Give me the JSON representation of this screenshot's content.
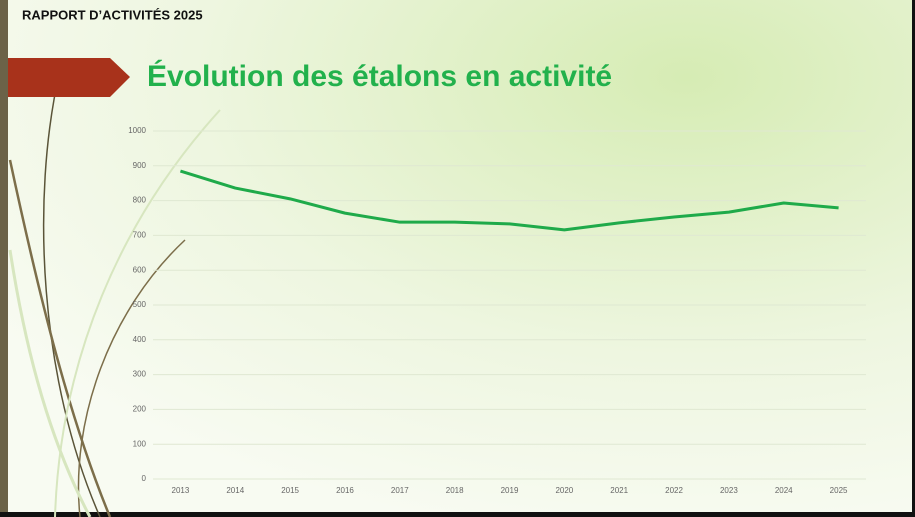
{
  "header": {
    "title": "RAPPORT D’ACTIVITÉS 2025"
  },
  "chart_data": {
    "type": "line",
    "title": "Évolution des étalons en activité",
    "categories": [
      "2013",
      "2014",
      "2015",
      "2016",
      "2017",
      "2018",
      "2019",
      "2020",
      "2021",
      "2022",
      "2023",
      "2024",
      "2025"
    ],
    "series": [
      {
        "name": "Étalons en activité",
        "color": "#1faa4a",
        "values": [
          885,
          836,
          805,
          764,
          738,
          738,
          733,
          716,
          736,
          753,
          767,
          793,
          779
        ]
      }
    ],
    "ylim": [
      0,
      1000
    ],
    "yticks": [
      0,
      100,
      200,
      300,
      400,
      500,
      600,
      700,
      800,
      900,
      1000
    ],
    "grid": true
  }
}
